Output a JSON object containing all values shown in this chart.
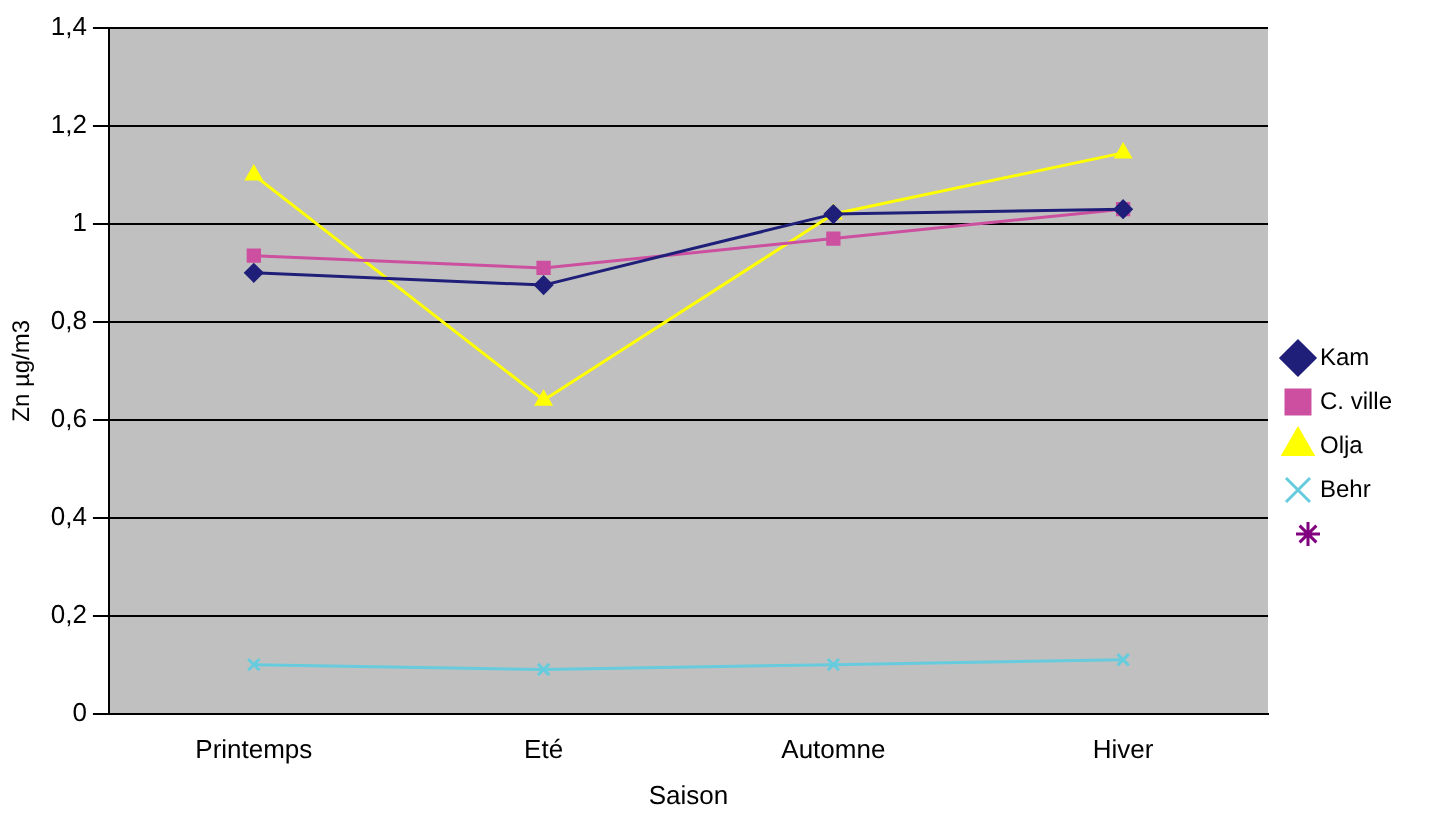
{
  "chart_data": {
    "type": "line",
    "xlabel": "Saison",
    "ylabel": "Zn µg/m3",
    "categories": [
      "Printemps",
      "Eté",
      "Automne",
      "Hiver"
    ],
    "series": [
      {
        "name": "Kam",
        "color": "#1f1f7a",
        "marker": "diamond",
        "values": [
          0.9,
          0.875,
          1.02,
          1.03
        ]
      },
      {
        "name": "C. ville",
        "color": "#cc4fa0",
        "marker": "square",
        "values": [
          0.935,
          0.91,
          0.97,
          1.03
        ]
      },
      {
        "name": "Olja",
        "color": "#ffff00",
        "marker": "triangle",
        "values": [
          1.1,
          0.64,
          1.02,
          1.145
        ]
      },
      {
        "name": "Behr",
        "color": "#66ccdd",
        "marker": "cross",
        "values": [
          0.1,
          0.09,
          0.1,
          0.11
        ]
      }
    ],
    "ylim": [
      0,
      1.4
    ],
    "yticks": [
      0,
      {
        "value": 0.2,
        "label": "0,2"
      },
      {
        "value": 0.4,
        "label": "0,4"
      },
      {
        "value": 0.6,
        "label": "0,6"
      },
      {
        "value": 0.8,
        "label": "0,8"
      },
      1,
      {
        "value": 1.2,
        "label": "1,2"
      },
      {
        "value": 1.4,
        "label": "1,4"
      }
    ],
    "grid": "y",
    "legend": "right"
  }
}
